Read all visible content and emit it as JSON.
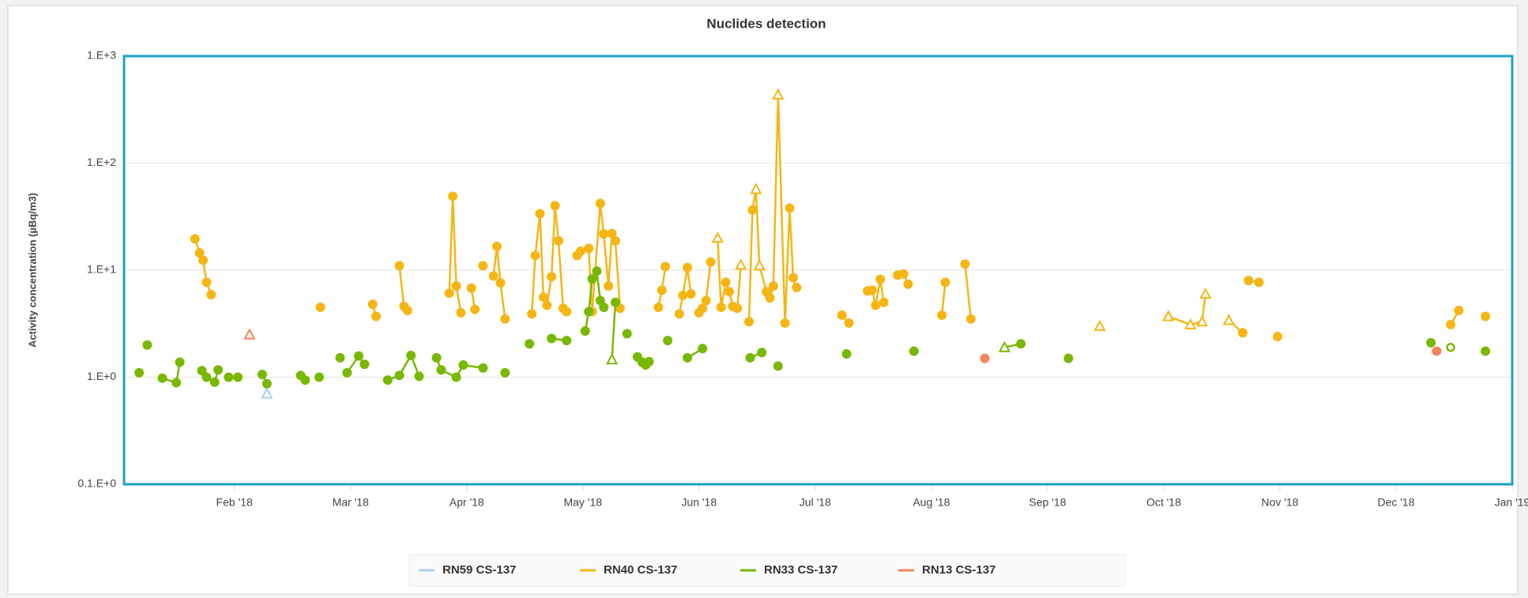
{
  "chart_data": {
    "type": "line",
    "title": "Nuclides detection",
    "y_label": "Activity concentration (µBq/m3)",
    "y_scale": "log",
    "grid": true,
    "legend": "bottom",
    "xlim": [
      0.05,
      12
    ],
    "xticks": [
      {
        "value": 1,
        "label": "Feb '18"
      },
      {
        "value": 2,
        "label": "Mar '18"
      },
      {
        "value": 3,
        "label": "Apr '18"
      },
      {
        "value": 4,
        "label": "May '18"
      },
      {
        "value": 5,
        "label": "Jun '18"
      },
      {
        "value": 6,
        "label": "Jul '18"
      },
      {
        "value": 7,
        "label": "Aug '18"
      },
      {
        "value": 8,
        "label": "Sep '18"
      },
      {
        "value": 9,
        "label": "Oct '18"
      },
      {
        "value": 10,
        "label": "Nov '18"
      },
      {
        "value": 11,
        "label": "Dec '18"
      },
      {
        "value": 12,
        "label": "Jan '19"
      }
    ],
    "ylim": [
      0.1,
      1000
    ],
    "yticks": [
      {
        "value": 0.1,
        "label": "0.1.E+0"
      },
      {
        "value": 1,
        "label": "1.E+0"
      },
      {
        "value": 10,
        "label": "1.E+1"
      },
      {
        "value": 100,
        "label": "1.E+2"
      },
      {
        "value": 1000,
        "label": "1.E+3"
      }
    ],
    "series": [
      {
        "name": "RN59 CS-137",
        "color": "#a9d3f0",
        "x": [
          1.28
        ],
        "values": [
          0.7
        ],
        "markers": [
          "triangle"
        ]
      },
      {
        "name": "RN40 CS-137",
        "color": "#f5b614",
        "x": [
          0.66,
          0.7,
          0.73,
          0.76,
          0.8,
          null,
          1.74,
          null,
          2.19,
          2.22,
          null,
          2.42,
          2.46,
          2.49,
          null,
          2.85,
          2.88,
          2.91,
          2.95,
          null,
          3.04,
          3.07,
          null,
          3.14,
          null,
          3.23,
          3.26,
          3.29,
          3.33,
          null,
          3.56,
          3.59,
          3.63,
          3.66,
          3.69,
          3.73,
          3.76,
          3.79,
          3.83,
          3.86,
          null,
          3.95,
          3.98,
          4.05,
          4.08,
          4.15,
          4.18,
          4.22,
          4.25,
          4.28,
          4.32,
          null,
          4.65,
          4.68,
          4.71,
          null,
          4.83,
          4.86,
          4.9,
          4.93,
          null,
          5.0,
          5.03,
          5.06,
          5.1,
          null,
          5.16,
          5.19,
          5.23,
          5.26,
          5.29,
          5.33,
          5.36,
          null,
          5.43,
          5.46,
          5.49,
          5.52,
          5.58,
          5.61,
          5.64,
          5.68,
          5.74,
          5.78,
          5.81,
          5.84,
          null,
          6.23,
          6.29,
          null,
          6.45,
          6.49,
          6.52,
          6.56,
          6.59,
          null,
          6.71,
          6.76,
          6.8,
          null,
          7.09,
          7.12,
          null,
          7.29,
          7.34,
          null,
          8.45,
          null,
          9.04,
          9.23,
          9.33,
          9.36,
          null,
          9.56,
          9.68,
          null,
          9.73,
          9.82,
          null,
          9.98,
          null,
          11.47,
          11.54,
          null,
          11.77
        ],
        "values": [
          19.6,
          14.5,
          12.4,
          7.7,
          5.9,
          null,
          4.5,
          null,
          4.8,
          3.7,
          null,
          11,
          4.6,
          4.2,
          null,
          6.1,
          49,
          7.1,
          4.0,
          null,
          6.8,
          4.3,
          null,
          11,
          null,
          8.8,
          16.7,
          7.6,
          3.5,
          null,
          3.9,
          13.7,
          33.7,
          5.6,
          4.7,
          8.7,
          40,
          18.8,
          4.4,
          4.1,
          null,
          13.7,
          15,
          16,
          4.1,
          42,
          21.8,
          7.1,
          22,
          18.8,
          4.4,
          null,
          4.5,
          6.5,
          10.8,
          null,
          3.9,
          5.8,
          10.6,
          6.0,
          null,
          4.0,
          4.4,
          5.2,
          11.9,
          null,
          20,
          4.5,
          7.7,
          6.3,
          4.6,
          4.4,
          11.2,
          null,
          3.3,
          36.5,
          57,
          11,
          6.3,
          5.5,
          7.1,
          436,
          3.2,
          38,
          8.5,
          6.9,
          null,
          3.8,
          3.2,
          null,
          6.4,
          6.5,
          4.7,
          8.2,
          5.0,
          null,
          9.0,
          9.2,
          7.4,
          null,
          3.8,
          7.7,
          null,
          11.4,
          3.5,
          null,
          3.0,
          null,
          3.7,
          3.1,
          3.3,
          6.0,
          null,
          3.4,
          2.6,
          null,
          8.0,
          7.7,
          null,
          2.4,
          null,
          3.1,
          4.2,
          null,
          3.7
        ],
        "markers": [
          "circle",
          "circle",
          "circle",
          "circle",
          "circle",
          null,
          "circle",
          null,
          "circle",
          "circle",
          null,
          "circle",
          "circle",
          "circle",
          null,
          "circle",
          "circle",
          "circle",
          "circle",
          null,
          "circle",
          "circle",
          null,
          "circle",
          null,
          "circle",
          "circle",
          "circle",
          "circle",
          null,
          "circle",
          "circle",
          "circle",
          "circle",
          "circle",
          "circle",
          "circle",
          "circle",
          "circle",
          "circle",
          null,
          "circle",
          "circle",
          "circle",
          "circle",
          "circle",
          "circle",
          "circle",
          "circle",
          "circle",
          "circle",
          null,
          "circle",
          "circle",
          "circle",
          null,
          "circle",
          "circle",
          "circle",
          "circle",
          null,
          "circle",
          "circle",
          "circle",
          "circle",
          null,
          "triangle",
          "circle",
          "circle",
          "circle",
          "circle",
          "circle",
          "triangle",
          null,
          "circle",
          "circle",
          "triangle",
          "triangle",
          "circle",
          "circle",
          "circle",
          "triangle",
          "circle",
          "circle",
          "circle",
          "circle",
          null,
          "circle",
          "circle",
          null,
          "circle",
          "circle",
          "circle",
          "circle",
          "circle",
          null,
          "circle",
          "circle",
          "circle",
          null,
          "circle",
          "circle",
          null,
          "circle",
          "circle",
          null,
          "triangle",
          null,
          "triangle",
          "triangle",
          "triangle",
          "triangle",
          null,
          "triangle",
          "circle",
          null,
          "circle",
          "circle",
          null,
          "circle",
          null,
          "circle",
          "circle",
          null,
          "circle"
        ]
      },
      {
        "name": "RN33 CS-137",
        "color": "#78b800",
        "x": [
          0.18,
          null,
          0.25,
          null,
          0.38,
          0.5,
          0.53,
          null,
          0.72,
          0.76,
          0.83,
          0.86,
          null,
          0.95,
          1.03,
          null,
          1.24,
          1.28,
          null,
          1.57,
          1.61,
          null,
          1.73,
          null,
          1.91,
          null,
          1.97,
          2.07,
          2.12,
          null,
          2.32,
          2.42,
          2.52,
          2.59,
          null,
          2.74,
          2.78,
          2.91,
          2.97,
          3.14,
          null,
          3.33,
          null,
          3.54,
          null,
          3.73,
          3.86,
          null,
          4.02,
          4.05,
          4.08,
          4.12,
          4.15,
          4.18,
          null,
          4.25,
          4.28,
          null,
          4.38,
          null,
          4.47,
          4.51,
          4.54,
          4.57,
          null,
          4.73,
          null,
          4.9,
          5.03,
          null,
          5.44,
          5.54,
          null,
          5.68,
          null,
          6.27,
          null,
          6.85,
          null,
          7.63,
          7.77,
          null,
          8.18,
          null,
          11.3,
          null,
          11.47,
          null,
          11.77
        ],
        "values": [
          1.1,
          null,
          2.0,
          null,
          0.98,
          0.89,
          1.38,
          null,
          1.15,
          1.0,
          0.9,
          1.17,
          null,
          1.0,
          1.0,
          null,
          1.06,
          0.87,
          null,
          1.04,
          0.94,
          null,
          1.0,
          null,
          1.52,
          null,
          1.1,
          1.58,
          1.32,
          null,
          0.94,
          1.04,
          1.6,
          1.02,
          null,
          1.52,
          1.17,
          1.0,
          1.3,
          1.22,
          null,
          1.1,
          null,
          2.05,
          null,
          2.3,
          2.2,
          null,
          2.7,
          4.1,
          8.3,
          9.8,
          5.2,
          4.5,
          null,
          1.46,
          5.0,
          null,
          2.55,
          null,
          1.55,
          1.38,
          1.3,
          1.4,
          null,
          2.2,
          null,
          1.52,
          1.85,
          null,
          1.52,
          1.7,
          null,
          1.27,
          null,
          1.65,
          null,
          1.75,
          null,
          1.9,
          2.05,
          null,
          1.5,
          null,
          2.1,
          null,
          1.9,
          null,
          1.75
        ],
        "markers": [
          "circle",
          null,
          "circle",
          null,
          "circle",
          "circle",
          "circle",
          null,
          "circle",
          "circle",
          "circle",
          "circle",
          null,
          "circle",
          "circle",
          null,
          "circle",
          "circle",
          null,
          "circle",
          "circle",
          null,
          "circle",
          null,
          "circle",
          null,
          "circle",
          "circle",
          "circle",
          null,
          "circle",
          "circle",
          "circle",
          "circle",
          null,
          "circle",
          "circle",
          "circle",
          "circle",
          "circle",
          null,
          "circle",
          null,
          "circle",
          null,
          "circle",
          "circle",
          null,
          "circle",
          "circle",
          "circle",
          "circle",
          "circle",
          "circle",
          null,
          "triangle",
          "circle",
          null,
          "circle",
          null,
          "circle",
          "circle",
          "circle",
          "circle",
          null,
          "circle",
          null,
          "circle",
          "circle",
          null,
          "circle",
          "circle",
          null,
          "circle",
          null,
          "circle",
          null,
          "circle",
          null,
          "triangle",
          "circle",
          null,
          "circle",
          null,
          "circle",
          null,
          "open-circle",
          null,
          "circle"
        ]
      },
      {
        "name": "RN13 CS-137",
        "color": "#f4845c",
        "x": [
          1.13,
          null,
          7.46,
          null,
          11.35
        ],
        "values": [
          2.5,
          null,
          1.5,
          null,
          1.75
        ],
        "markers": [
          "triangle",
          null,
          "circle",
          null,
          "circle"
        ]
      }
    ]
  }
}
